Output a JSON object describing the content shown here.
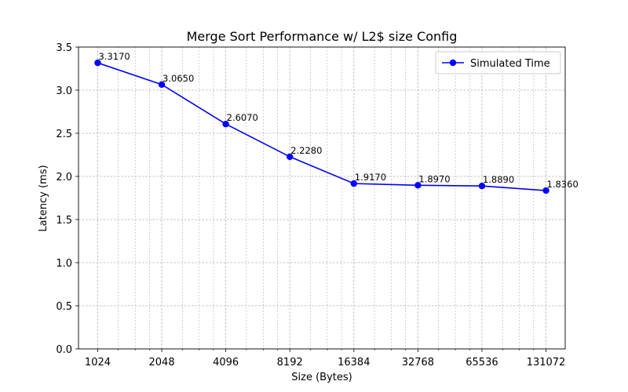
{
  "chart_data": {
    "type": "line",
    "title": "Merge Sort Performance w/ L2$ size Config",
    "xlabel": "Size (Bytes)",
    "ylabel": "Latency (ms)",
    "x_scale": "log2",
    "x": [
      1024,
      2048,
      4096,
      8192,
      16384,
      32768,
      65536,
      131072
    ],
    "x_tick_labels": [
      "1024",
      "2048",
      "4096",
      "8192",
      "16384",
      "32768",
      "65536",
      "131072"
    ],
    "ylim": [
      0,
      3.5
    ],
    "y_ticks": [
      0.0,
      0.5,
      1.0,
      1.5,
      2.0,
      2.5,
      3.0,
      3.5
    ],
    "y_tick_labels": [
      "0.0",
      "0.5",
      "1.0",
      "1.5",
      "2.0",
      "2.5",
      "3.0",
      "3.5"
    ],
    "grid": true,
    "legend_position": "top-right",
    "series": [
      {
        "name": "Simulated Time",
        "color": "#0000ff",
        "marker": "circle",
        "values": [
          3.317,
          3.065,
          2.607,
          2.228,
          1.917,
          1.897,
          1.889,
          1.836
        ],
        "data_labels": [
          "3.3170",
          "3.0650",
          "2.6070",
          "2.2280",
          "1.9170",
          "1.8970",
          "1.8890",
          "1.8360"
        ]
      }
    ]
  }
}
